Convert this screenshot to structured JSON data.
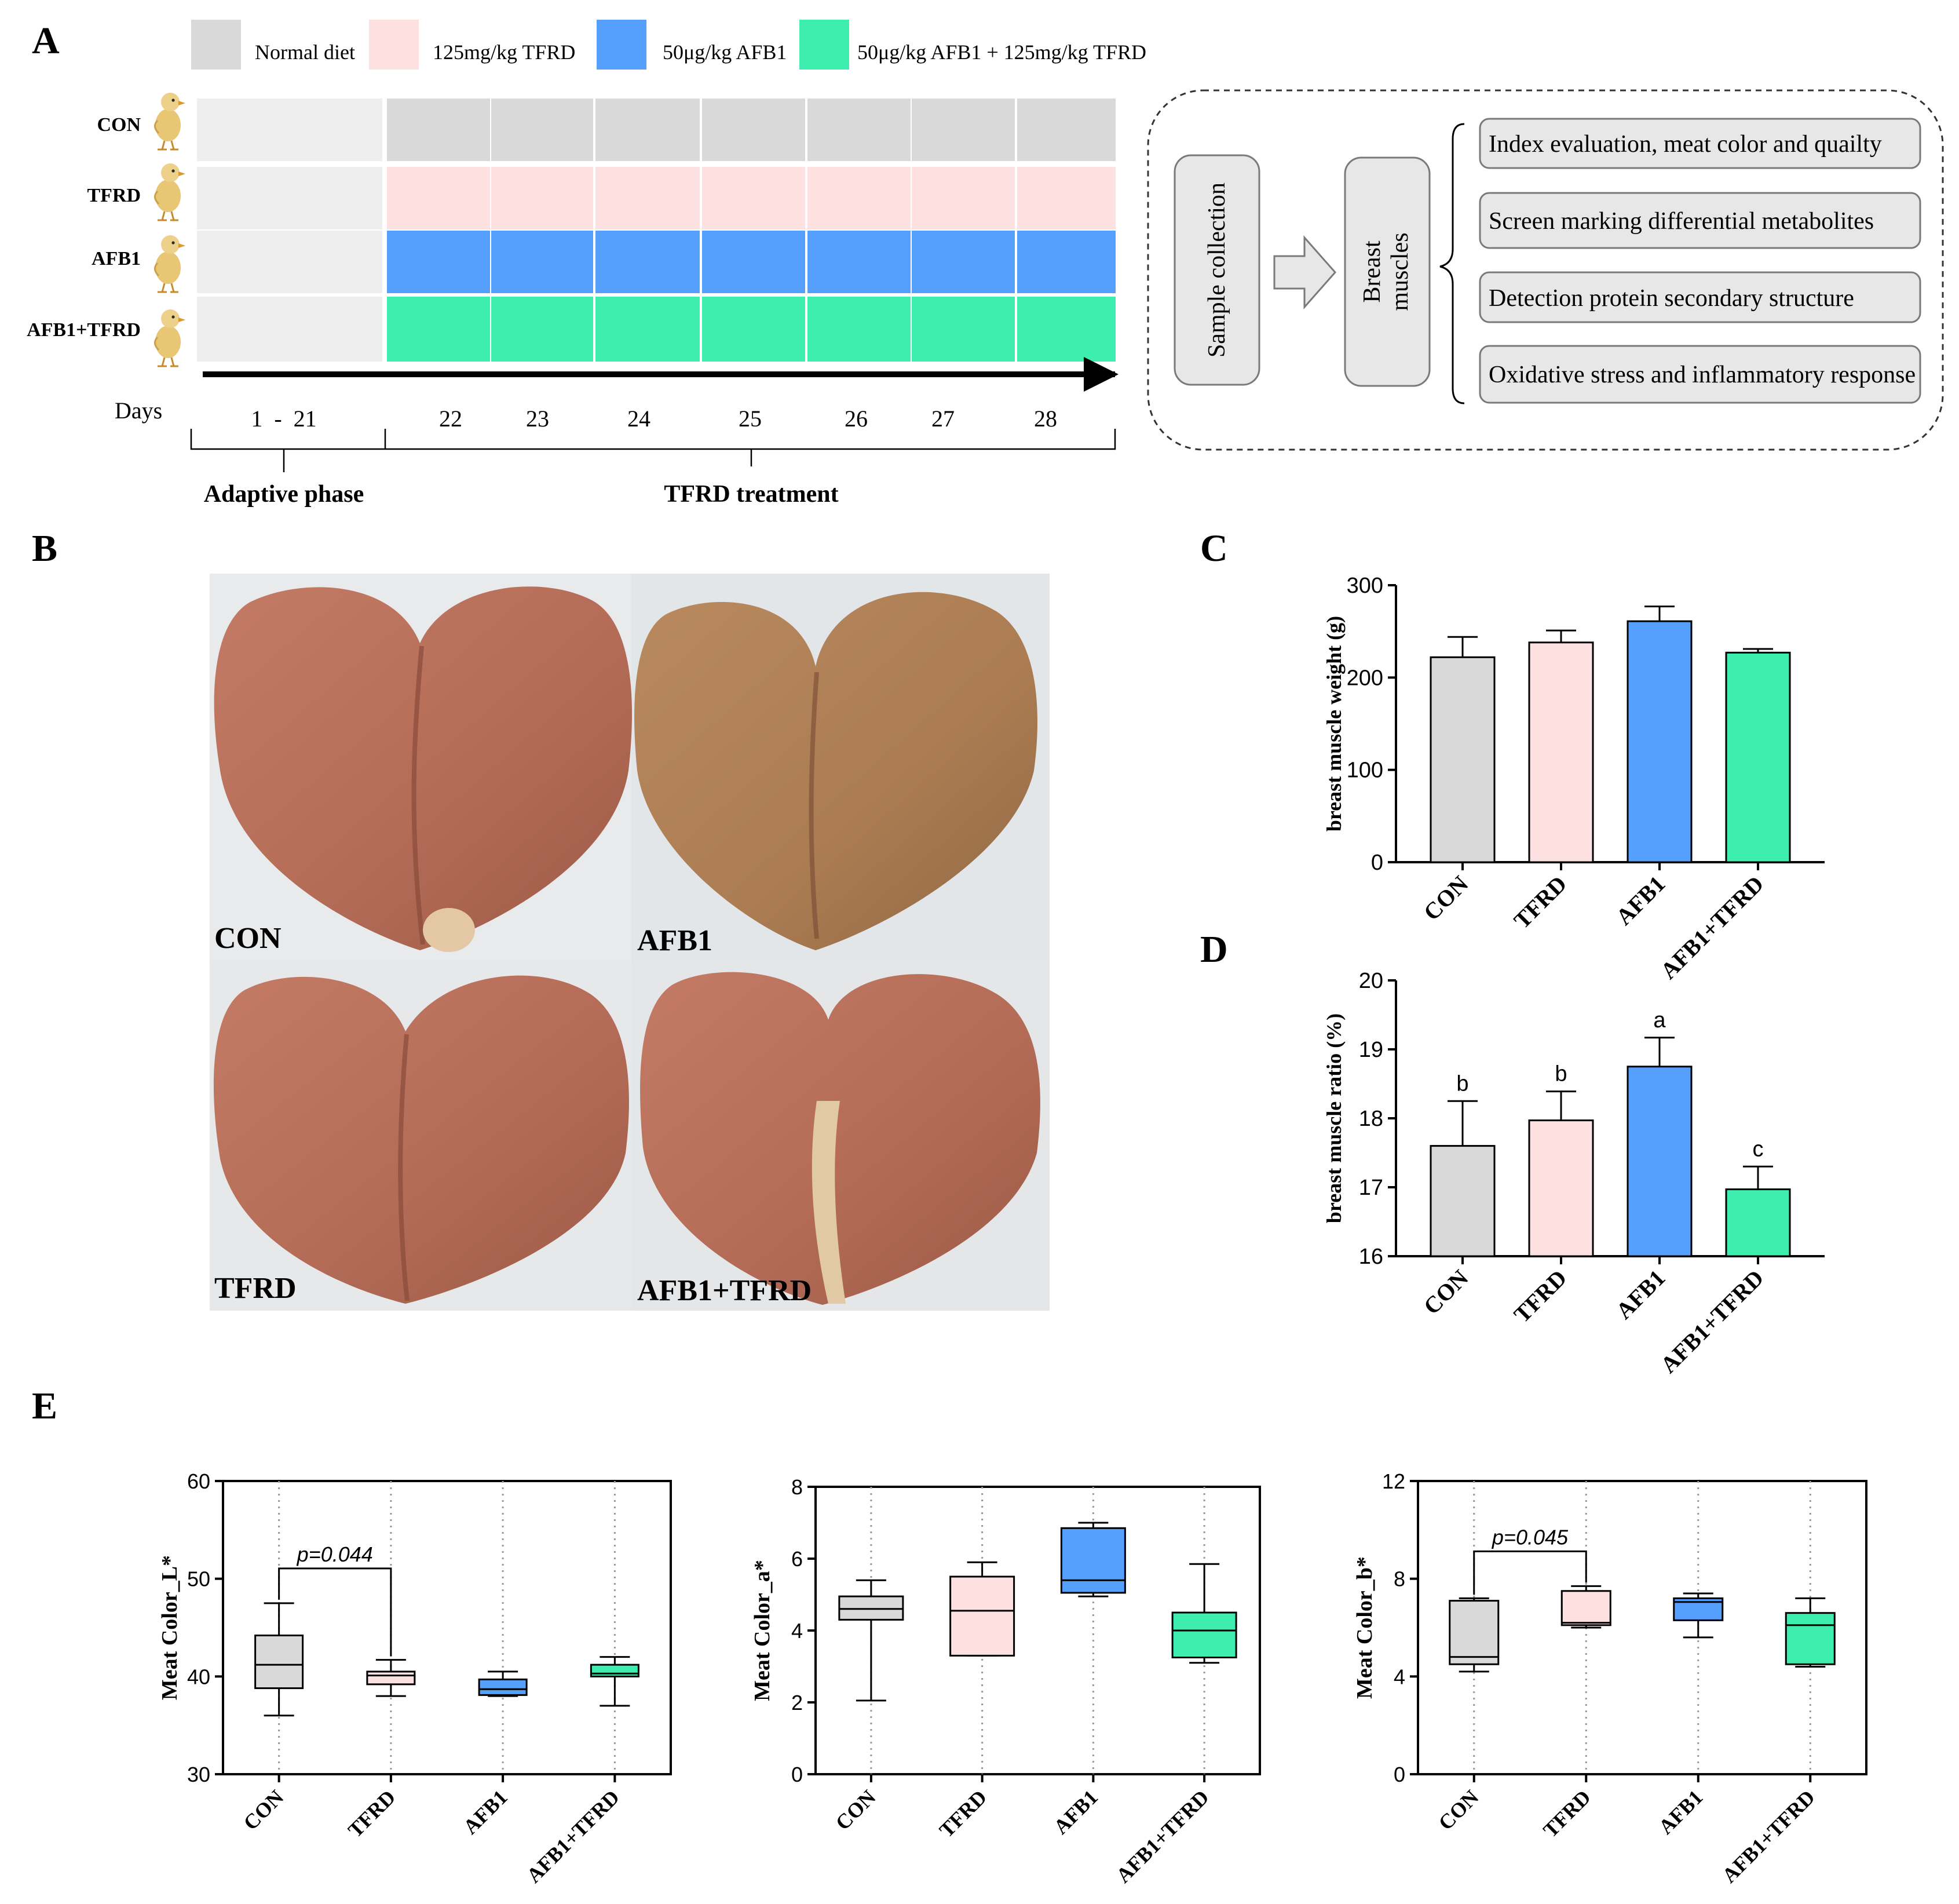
{
  "panel_labels": {
    "A": "A",
    "B": "B",
    "C": "C",
    "D": "D",
    "E": "E"
  },
  "colors": {
    "con": "#d9d9d9",
    "tfrd": "#fde0e0",
    "afb1": "#559ffd",
    "combo": "#3eeeae",
    "adapt": "#eeeeee"
  },
  "panelA": {
    "legend": [
      "Normal diet",
      "125mg/kg TFRD",
      "50μg/kg AFB1",
      "50μg/kg AFB1 + 125mg/kg TFRD"
    ],
    "groups": [
      "CON",
      "TFRD",
      "AFB1",
      "AFB1+TFRD"
    ],
    "days_label": "Days",
    "days": [
      "1  -  21",
      "22",
      "23",
      "24",
      "25",
      "26",
      "27",
      "28"
    ],
    "phase_labels": [
      "Adaptive phase",
      "TFRD treatment"
    ],
    "chick_icon": "chick-icon",
    "flow": {
      "collection": "Sample collection",
      "tissue_line1": "Breast",
      "tissue_line2": "muscles",
      "items": [
        "Index evaluation, meat color and quailty",
        "Screen marking differential metabolites",
        "Detection protein secondary structure",
        "Oxidative stress and inflammatory response"
      ]
    }
  },
  "panelB": {
    "labels": [
      "CON",
      "AFB1",
      "TFRD",
      "AFB1+TFRD"
    ]
  },
  "chart_data": [
    {
      "panel": "C",
      "type": "bar",
      "ylabel": "breast muscle weight (g)",
      "categories": [
        "CON",
        "TFRD",
        "AFB1",
        "AFB1+TFRD"
      ],
      "values": [
        222,
        238,
        261,
        227
      ],
      "errors": [
        22,
        13,
        16,
        4
      ],
      "ylim": [
        0,
        300
      ],
      "yticks": [
        0,
        100,
        200,
        300
      ]
    },
    {
      "panel": "D",
      "type": "bar",
      "ylabel": "breast muscle ratio (%)",
      "categories": [
        "CON",
        "TFRD",
        "AFB1",
        "AFB1+TFRD"
      ],
      "values": [
        17.6,
        17.97,
        18.75,
        16.97
      ],
      "errors": [
        0.65,
        0.42,
        0.42,
        0.33
      ],
      "letters": [
        "b",
        "b",
        "a",
        "c"
      ],
      "ylim": [
        16,
        20
      ],
      "yticks": [
        16,
        17,
        18,
        19,
        20
      ]
    },
    {
      "panel": "E1",
      "type": "box",
      "ylabel": "Meat Color_L*",
      "categories": [
        "CON",
        "TFRD",
        "AFB1",
        "AFB1+TFRD"
      ],
      "boxes": [
        {
          "min": 36.0,
          "q1": 38.8,
          "median": 41.2,
          "q3": 44.2,
          "max": 47.5
        },
        {
          "min": 38.0,
          "q1": 39.2,
          "median": 40.1,
          "q3": 40.5,
          "max": 41.7
        },
        {
          "min": 38.0,
          "q1": 38.1,
          "median": 38.7,
          "q3": 39.7,
          "max": 40.5
        },
        {
          "min": 37.0,
          "q1": 40.0,
          "median": 40.3,
          "q3": 41.2,
          "max": 42.0
        }
      ],
      "annotation": "p=0.044",
      "ylim": [
        30,
        60
      ],
      "yticks": [
        30,
        40,
        50,
        60
      ]
    },
    {
      "panel": "E2",
      "type": "box",
      "ylabel": "Meat Color_a*",
      "categories": [
        "CON",
        "TFRD",
        "AFB1",
        "AFB1+TFRD"
      ],
      "boxes": [
        {
          "min": 2.05,
          "q1": 4.3,
          "median": 4.6,
          "q3": 4.95,
          "max": 5.4
        },
        {
          "min": 3.3,
          "q1": 3.3,
          "median": 4.55,
          "q3": 5.5,
          "max": 5.9
        },
        {
          "min": 4.95,
          "q1": 5.05,
          "median": 5.4,
          "q3": 6.85,
          "max": 7.0
        },
        {
          "min": 3.1,
          "q1": 3.25,
          "median": 4.0,
          "q3": 4.5,
          "max": 5.85
        }
      ],
      "ylim": [
        0,
        8
      ],
      "yticks": [
        0,
        2,
        4,
        6,
        8
      ]
    },
    {
      "panel": "E3",
      "type": "box",
      "ylabel": "Meat Color_b*",
      "categories": [
        "CON",
        "TFRD",
        "AFB1",
        "AFB1+TFRD"
      ],
      "boxes": [
        {
          "min": 4.2,
          "q1": 4.5,
          "median": 4.8,
          "q3": 7.1,
          "max": 7.2
        },
        {
          "min": 6.0,
          "q1": 6.1,
          "median": 6.2,
          "q3": 7.5,
          "max": 7.7
        },
        {
          "min": 5.6,
          "q1": 6.3,
          "median": 7.05,
          "q3": 7.2,
          "max": 7.4
        },
        {
          "min": 4.4,
          "q1": 4.5,
          "median": 6.1,
          "q3": 6.6,
          "max": 7.2
        }
      ],
      "annotation": "p=0.045",
      "ylim": [
        0,
        12
      ],
      "yticks": [
        0,
        4,
        8,
        12
      ]
    }
  ]
}
